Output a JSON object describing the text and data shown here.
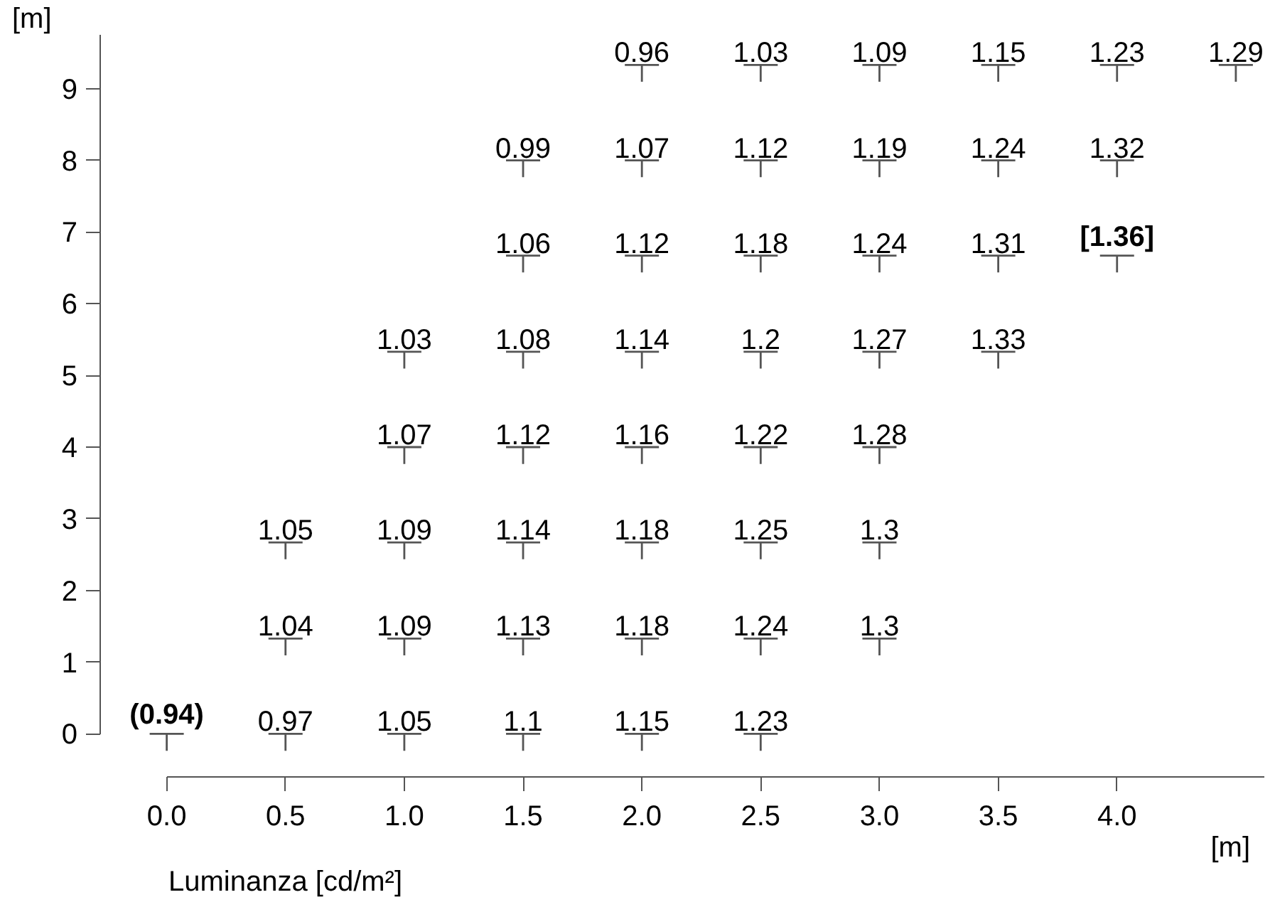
{
  "chart_data": {
    "type": "scatter",
    "xlabel": "[m]",
    "ylabel": "[m]",
    "x": [
      0,
      0.5,
      1.0,
      1.5,
      2.0,
      2.5,
      0.5,
      1.0,
      1.5,
      2.0,
      2.5,
      3.0,
      0.5,
      1.0,
      1.5,
      2.0,
      2.5,
      3.0,
      1.0,
      1.5,
      2.0,
      2.5,
      3.0,
      1.0,
      1.5,
      2.0,
      2.5,
      3.0,
      3.5,
      1.5,
      2.0,
      2.5,
      3.0,
      3.5,
      4.0,
      1.5,
      2.0,
      2.5,
      3.0,
      3.5,
      4.0,
      2.0,
      2.5,
      3.0,
      3.5,
      4.0,
      4.5
    ],
    "values": [
      0,
      0,
      0,
      0,
      0,
      0,
      1.33,
      1.33,
      1.33,
      1.33,
      1.33,
      1.33,
      2.67,
      2.67,
      2.67,
      2.67,
      2.67,
      2.67,
      4,
      4,
      4,
      4,
      4,
      5.33,
      5.33,
      5.33,
      5.33,
      5.33,
      5.33,
      6.67,
      6.67,
      6.67,
      6.67,
      6.67,
      6.67,
      8,
      8,
      8,
      8,
      8,
      8,
      9.33,
      9.33,
      9.33,
      9.33,
      9.33,
      9.33
    ],
    "annotations": [
      {
        "text": "(0.94)",
        "x": 0,
        "y": 0
      },
      {
        "text": "0.97",
        "x": 0.5,
        "y": 0
      },
      {
        "text": "1.05",
        "x": 1.0,
        "y": 0
      },
      {
        "text": "1.1",
        "x": 1.5,
        "y": 0
      },
      {
        "text": "1.15",
        "x": 2.0,
        "y": 0
      },
      {
        "text": "1.23",
        "x": 2.5,
        "y": 0
      },
      {
        "text": "1.04",
        "x": 0.5,
        "y": 1.33
      },
      {
        "text": "1.09",
        "x": 1.0,
        "y": 1.33
      },
      {
        "text": "1.13",
        "x": 1.5,
        "y": 1.33
      },
      {
        "text": "1.18",
        "x": 2.0,
        "y": 1.33
      },
      {
        "text": "1.24",
        "x": 2.5,
        "y": 1.33
      },
      {
        "text": "1.3",
        "x": 3.0,
        "y": 1.33
      },
      {
        "text": "1.05",
        "x": 0.5,
        "y": 2.67
      },
      {
        "text": "1.09",
        "x": 1.0,
        "y": 2.67
      },
      {
        "text": "1.14",
        "x": 1.5,
        "y": 2.67
      },
      {
        "text": "1.18",
        "x": 2.0,
        "y": 2.67
      },
      {
        "text": "1.25",
        "x": 2.5,
        "y": 2.67
      },
      {
        "text": "1.3",
        "x": 3.0,
        "y": 2.67
      },
      {
        "text": "1.07",
        "x": 1.0,
        "y": 4
      },
      {
        "text": "1.12",
        "x": 1.5,
        "y": 4
      },
      {
        "text": "1.16",
        "x": 2.0,
        "y": 4
      },
      {
        "text": "1.22",
        "x": 2.5,
        "y": 4
      },
      {
        "text": "1.28",
        "x": 3.0,
        "y": 4
      },
      {
        "text": "1.03",
        "x": 1.0,
        "y": 5.33
      },
      {
        "text": "1.08",
        "x": 1.5,
        "y": 5.33
      },
      {
        "text": "1.14",
        "x": 2.0,
        "y": 5.33
      },
      {
        "text": "1.2",
        "x": 2.5,
        "y": 5.33
      },
      {
        "text": "1.27",
        "x": 3.0,
        "y": 5.33
      },
      {
        "text": "1.33",
        "x": 3.5,
        "y": 5.33
      },
      {
        "text": "1.06",
        "x": 1.5,
        "y": 6.67
      },
      {
        "text": "1.12",
        "x": 2.0,
        "y": 6.67
      },
      {
        "text": "1.18",
        "x": 2.5,
        "y": 6.67
      },
      {
        "text": "1.24",
        "x": 3.0,
        "y": 6.67
      },
      {
        "text": "1.31",
        "x": 3.5,
        "y": 6.67
      },
      {
        "text": "[1.36]",
        "x": 4.0,
        "y": 6.67
      },
      {
        "text": "0.99",
        "x": 1.5,
        "y": 8
      },
      {
        "text": "1.07",
        "x": 2.0,
        "y": 8
      },
      {
        "text": "1.12",
        "x": 2.5,
        "y": 8
      },
      {
        "text": "1.19",
        "x": 3.0,
        "y": 8
      },
      {
        "text": "1.24",
        "x": 3.5,
        "y": 8
      },
      {
        "text": "1.32",
        "x": 4.0,
        "y": 8
      },
      {
        "text": "0.96",
        "x": 2.0,
        "y": 9.33
      },
      {
        "text": "1.03",
        "x": 2.5,
        "y": 9.33
      },
      {
        "text": "1.09",
        "x": 3.0,
        "y": 9.33
      },
      {
        "text": "1.15",
        "x": 3.5,
        "y": 9.33
      },
      {
        "text": "1.23",
        "x": 4.0,
        "y": 9.33
      },
      {
        "text": "1.29",
        "x": 4.5,
        "y": 9.33
      },
      "Luminanza [cd/m²]"
    ],
    "color": "#555555",
    "marker": "none",
    "grid": false,
    "xlim": [
      -0.28,
      4.62
    ],
    "ylim": [
      -0.6,
      9.75
    ],
    "xticks": [
      {
        "value": 0,
        "label": "0.0"
      },
      0.5,
      {
        "value": 1,
        "label": "1.0"
      },
      1.5,
      {
        "value": 2,
        "label": "2.0"
      },
      2.5,
      {
        "value": 3,
        "label": "3.0"
      },
      3.5,
      {
        "value": 4,
        "label": "4.0"
      }
    ],
    "yticks": [
      0,
      1,
      2,
      3,
      4,
      5,
      6,
      7,
      8,
      9
    ]
  }
}
